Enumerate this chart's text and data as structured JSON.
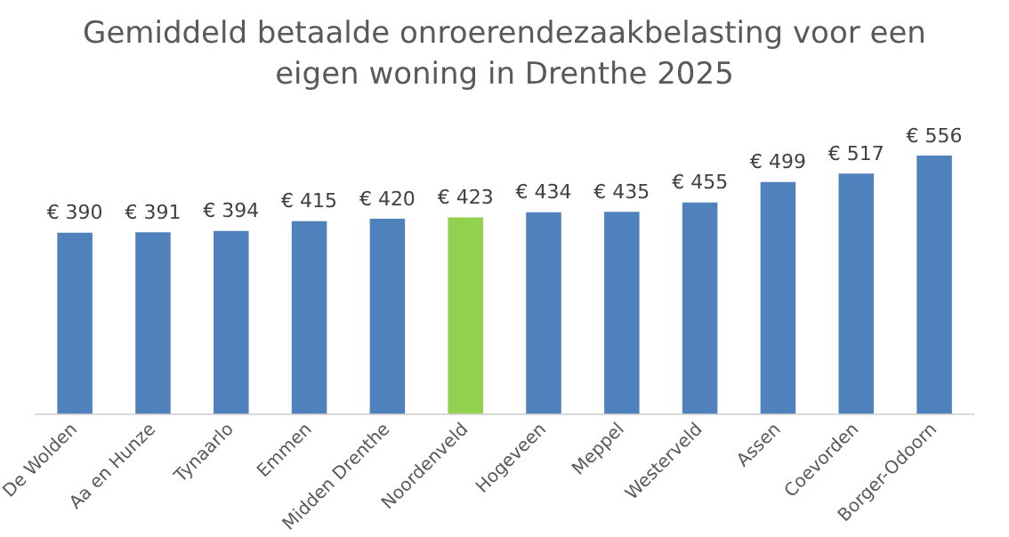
{
  "chart_data": {
    "type": "bar",
    "title": "Gemiddeld betaalde onroerendezaakbelasting voor een eigen woning in Drenthe 2025",
    "categories": [
      "De Wolden",
      "Aa en Hunze",
      "Tynaarlo",
      "Emmen",
      "Midden Drenthe",
      "Noordenveld",
      "Hogeveen",
      "Meppel",
      "Westerveld",
      "Assen",
      "Coevorden",
      "Borger-Odoorn"
    ],
    "values": [
      390,
      391,
      394,
      415,
      420,
      423,
      434,
      435,
      455,
      499,
      517,
      556
    ],
    "colors": [
      "#4f81bd",
      "#4f81bd",
      "#4f81bd",
      "#4f81bd",
      "#4f81bd",
      "#92d050",
      "#4f81bd",
      "#4f81bd",
      "#4f81bd",
      "#4f81bd",
      "#4f81bd",
      "#4f81bd"
    ],
    "value_labels": [
      "€ 390",
      "€ 391",
      "€ 394",
      "€ 415",
      "€ 420",
      "€ 423",
      "€ 434",
      "€ 435",
      "€ 455",
      "€ 499",
      "€ 517",
      "€ 556"
    ],
    "tick_labels": "x",
    "grid": false,
    "legend": false
  }
}
